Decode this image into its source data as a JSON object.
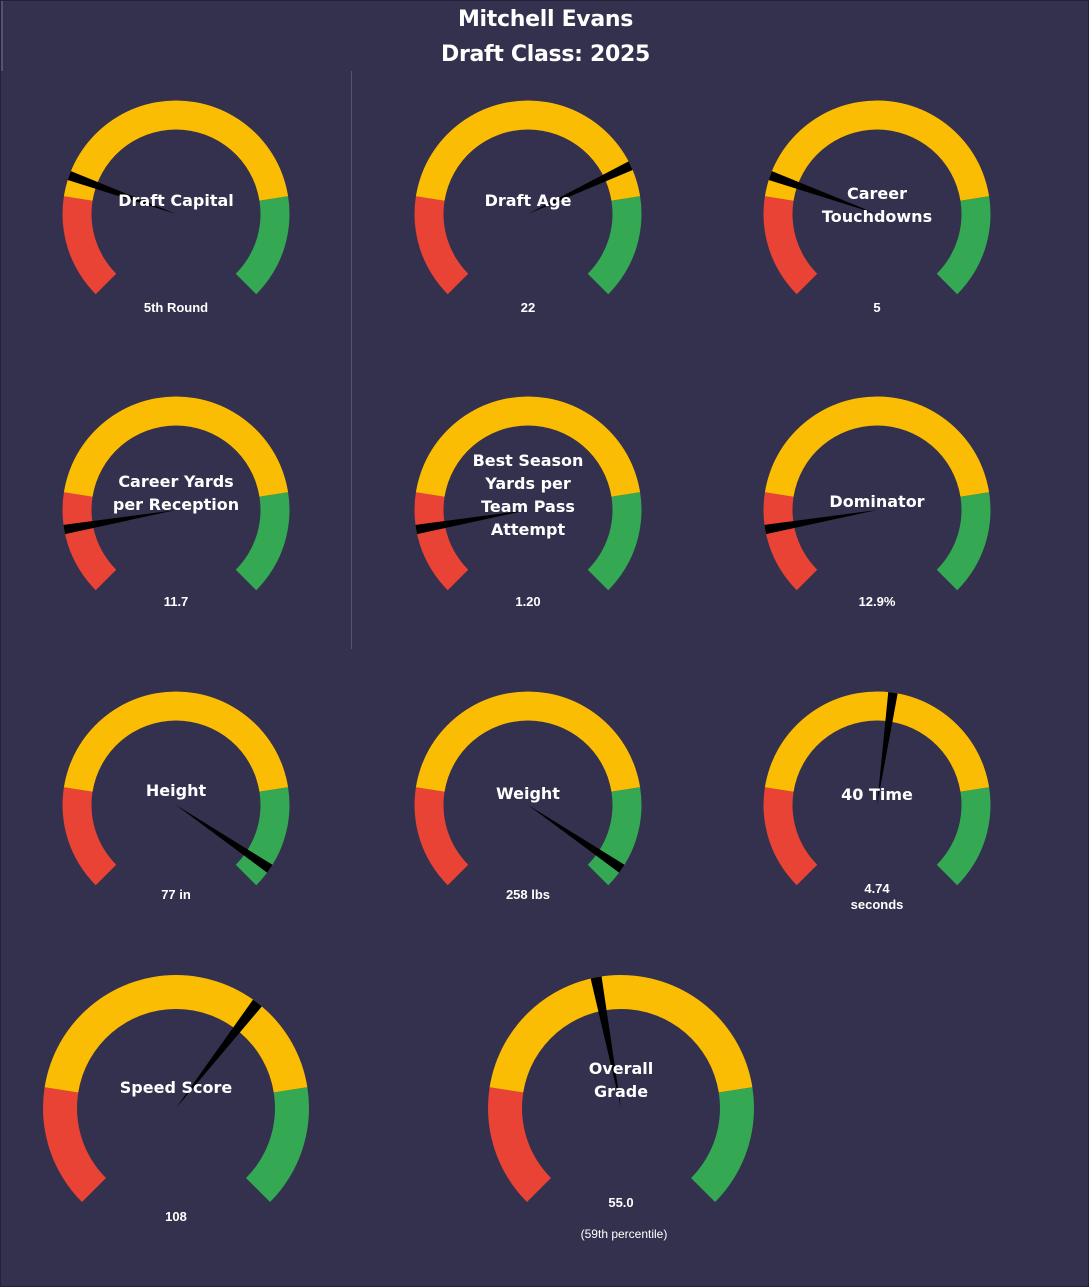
{
  "header": {
    "player_name": "Mitchell Evans",
    "draft_class": "Draft Class: 2025"
  },
  "colors": {
    "background": "#33314d",
    "low": "#e94335",
    "mid": "#fbbc04",
    "high": "#34a853",
    "needle": "#000000",
    "text": "#ffffff"
  },
  "chart_data": {
    "type": "gauge",
    "description": "Each gauge arc spans from lower-left through the top to lower-right; needle position is given as fraction of the arc (0 = start, 1 = end).",
    "gauges": [
      {
        "id": "draft-capital",
        "label_lines": [
          "Draft Capital"
        ],
        "value": "5th Round",
        "needle_fraction": 0.24
      },
      {
        "id": "draft-age",
        "label_lines": [
          "Draft Age"
        ],
        "value": "22",
        "needle_fraction": 0.74
      },
      {
        "id": "career-touchdowns",
        "label_lines": [
          "Career",
          "Touchdowns"
        ],
        "value": "5",
        "needle_fraction": 0.24
      },
      {
        "id": "career-ypr",
        "label_lines": [
          "Career Yards",
          "per Reception"
        ],
        "value": "11.7",
        "needle_fraction": 0.13
      },
      {
        "id": "best-season-yptpa",
        "label_lines": [
          "Best Season",
          "Yards per",
          "Team Pass",
          "Attempt"
        ],
        "value": "1.20",
        "needle_fraction": 0.13
      },
      {
        "id": "dominator",
        "label_lines": [
          "Dominator"
        ],
        "value": "12.9%",
        "needle_fraction": 0.13
      },
      {
        "id": "height",
        "label_lines": [
          "Height"
        ],
        "value": "77 in",
        "needle_fraction": 0.96
      },
      {
        "id": "weight",
        "label_lines": [
          "Weight"
        ],
        "value": "258 lbs",
        "needle_fraction": 0.96
      },
      {
        "id": "forty-time",
        "label_lines": [
          "40 Time"
        ],
        "value_lines": [
          "4.74",
          "seconds"
        ],
        "needle_fraction": 0.53
      },
      {
        "id": "speed-score",
        "label_lines": [
          "Speed Score"
        ],
        "value": "108",
        "needle_fraction": 0.64
      },
      {
        "id": "overall-grade",
        "label_lines": [
          "Overall",
          "Grade"
        ],
        "value": "55.0",
        "subvalue": "(59th percentile)",
        "needle_fraction": 0.46
      }
    ]
  }
}
